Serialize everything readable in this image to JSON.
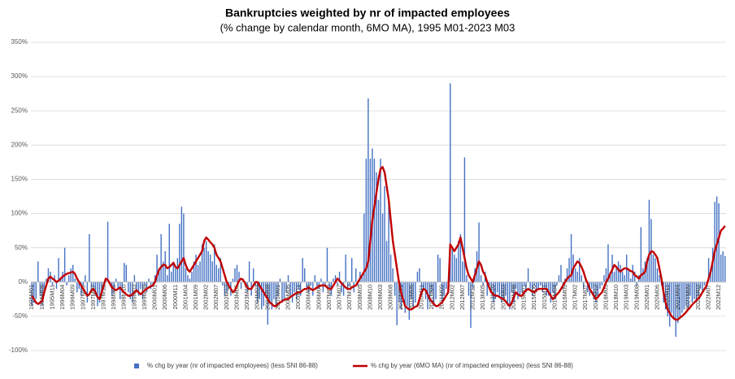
{
  "chart_data": {
    "type": "bar",
    "title": "Bankruptcies weighted by nr of impacted employees",
    "subtitle": "(% change by calendar month, 6MO MA), 1995 M01-2023 M03",
    "ylim": [
      -100,
      350
    ],
    "yticks": [
      {
        "value": -100,
        "label": "-100%"
      },
      {
        "value": -50,
        "label": "-50%"
      },
      {
        "value": 0,
        "label": "0%"
      },
      {
        "value": 50,
        "label": "50%"
      },
      {
        "value": 100,
        "label": "100%"
      },
      {
        "value": 150,
        "label": "150%"
      },
      {
        "value": 200,
        "label": "200%"
      },
      {
        "value": 250,
        "label": "250%"
      },
      {
        "value": 300,
        "label": "300%"
      },
      {
        "value": 350,
        "label": "350%"
      }
    ],
    "grid": true,
    "legend": "bottom",
    "categories": [
      "1995M01",
      null,
      null,
      null,
      null,
      "1995M06",
      null,
      null,
      null,
      null,
      "1995M11",
      null,
      null,
      null,
      null,
      "1996M04",
      null,
      null,
      null,
      null,
      "1996M09",
      null,
      null,
      null,
      null,
      "1997M02",
      null,
      null,
      null,
      null,
      "1997M07",
      null,
      null,
      null,
      null,
      "1997M12",
      null,
      null,
      null,
      null,
      "1998M05",
      null,
      null,
      null,
      null,
      "1998M10",
      null,
      null,
      null,
      null,
      "1999M03",
      null,
      null,
      null,
      null,
      "1999M08",
      null,
      null,
      null,
      null,
      "2000M01",
      null,
      null,
      null,
      null,
      "2000M06",
      null,
      null,
      null,
      null,
      "2000M11",
      null,
      null,
      null,
      null,
      "2001M04",
      null,
      null,
      null,
      null,
      "2001M09",
      null,
      null,
      null,
      null,
      "2002M02",
      null,
      null,
      null,
      null,
      "2002M07",
      null,
      null,
      null,
      null,
      "2002M12",
      null,
      null,
      null,
      null,
      "2003M05",
      null,
      null,
      null,
      null,
      "2003M10",
      null,
      null,
      null,
      null,
      "2004M03",
      null,
      null,
      null,
      null,
      "2004M08",
      null,
      null,
      null,
      null,
      "2005M01",
      null,
      null,
      null,
      null,
      "2005M06",
      null,
      null,
      null,
      null,
      "2005M11",
      null,
      null,
      null,
      null,
      "2006M04",
      null,
      null,
      null,
      null,
      "2006M09",
      null,
      null,
      null,
      null,
      "2007M02",
      null,
      null,
      null,
      null,
      "2007M07",
      null,
      null,
      null,
      null,
      "2007M12",
      null,
      null,
      null,
      null,
      "2008M05",
      null,
      null,
      null,
      null,
      "2008M10",
      null,
      null,
      null,
      null,
      "2009M03",
      null,
      null,
      null,
      null,
      "2009M08",
      null,
      null,
      null,
      null,
      "2010M01",
      null,
      null,
      null,
      null,
      "2010M06",
      null,
      null,
      null,
      null,
      "2010M11",
      null,
      null,
      null,
      null,
      "2011M04",
      null,
      null,
      null,
      null,
      "2011M09",
      null,
      null,
      null,
      null,
      "2012M02",
      null,
      null,
      null,
      null,
      "2012M07",
      null,
      null,
      null,
      null,
      "2012M12",
      null,
      null,
      null,
      null,
      "2013M05",
      null,
      null,
      null,
      null,
      "2013M10",
      null,
      null,
      null,
      null,
      "2014M03",
      null,
      null,
      null,
      null,
      "2014M08",
      null,
      null,
      null,
      null,
      "2015M01",
      null,
      null,
      null,
      null,
      "2015M06",
      null,
      null,
      null,
      null,
      "2015M11",
      null,
      null,
      null,
      null,
      "2016M04",
      null,
      null,
      null,
      null,
      "2016M09",
      null,
      null,
      null,
      null,
      "2017M02",
      null,
      null,
      null,
      null,
      "2017M07",
      null,
      null,
      null,
      null,
      "2017M12",
      null,
      null,
      null,
      null,
      "2018M05",
      null,
      null,
      null,
      null,
      "2018M10",
      null,
      null,
      null,
      null,
      "2019M03",
      null,
      null,
      null,
      null,
      "2019M08",
      null,
      null,
      null,
      null,
      "2020M01",
      null,
      null,
      null,
      null,
      "2020M06",
      null,
      null,
      null,
      null,
      "2020M11",
      null,
      null,
      null,
      null,
      "2021M04",
      null,
      null,
      null,
      null,
      "2021M09",
      null,
      null,
      null,
      null,
      "2022M02",
      null,
      null,
      null,
      null,
      "2022M07",
      null,
      null,
      null,
      null,
      "2022M12",
      null,
      null,
      null
    ],
    "series": [
      {
        "name": "% chg by year  (nr of impacted employees) (less SNI 86-88)",
        "type": "bar",
        "color": "#4472c4",
        "values": [
          -35,
          -30,
          -25,
          30,
          -20,
          -35,
          -10,
          5,
          20,
          15,
          -5,
          10,
          -10,
          35,
          5,
          15,
          50,
          -5,
          10,
          20,
          25,
          5,
          -15,
          -10,
          -20,
          -5,
          10,
          -30,
          70,
          -15,
          -10,
          -20,
          -35,
          -30,
          -15,
          -10,
          5,
          88,
          -5,
          -20,
          -15,
          5,
          -10,
          -25,
          -10,
          28,
          25,
          -15,
          -25,
          -30,
          10,
          -15,
          -20,
          -10,
          -25,
          -5,
          -15,
          5,
          -10,
          -5,
          10,
          40,
          20,
          70,
          30,
          45,
          10,
          85,
          15,
          30,
          20,
          35,
          85,
          110,
          100,
          20,
          10,
          5,
          15,
          30,
          40,
          25,
          30,
          55,
          50,
          60,
          45,
          40,
          30,
          55,
          25,
          20,
          35,
          -5,
          -20,
          -15,
          -10,
          -20,
          5,
          20,
          25,
          15,
          -10,
          5,
          -5,
          -15,
          30,
          -20,
          20,
          -5,
          -30,
          -25,
          -40,
          -35,
          -20,
          -62,
          -30,
          -40,
          -25,
          -35,
          -20,
          5,
          -30,
          -25,
          -15,
          10,
          -20,
          -30,
          -15,
          -25,
          -10,
          -20,
          35,
          20,
          -10,
          -15,
          -5,
          -20,
          10,
          -5,
          -10,
          5,
          -15,
          -5,
          50,
          -10,
          -20,
          5,
          10,
          -5,
          15,
          -15,
          -20,
          40,
          -10,
          -5,
          35,
          -15,
          20,
          -5,
          15,
          10,
          100,
          180,
          268,
          180,
          195,
          180,
          160,
          120,
          180,
          100,
          140,
          60,
          120,
          40,
          20,
          -20,
          -63,
          -30,
          -40,
          -30,
          -45,
          -35,
          -55,
          -25,
          -40,
          -30,
          15,
          20,
          -20,
          -10,
          -25,
          -40,
          -30,
          -15,
          -35,
          -25,
          40,
          35,
          -30,
          -20,
          -10,
          -5,
          290,
          50,
          40,
          35,
          60,
          70,
          30,
          182,
          10,
          -20,
          -67,
          -10,
          20,
          45,
          87,
          10,
          -5,
          15,
          -20,
          -5,
          -15,
          -30,
          -25,
          -15,
          -20,
          -30,
          -25,
          -20,
          -35,
          -40,
          -15,
          -30,
          -10,
          -25,
          -20,
          -15,
          -5,
          -15,
          20,
          -10,
          -20,
          -5,
          -15,
          -10,
          -5,
          -15,
          -10,
          -20,
          -20,
          -30,
          -15,
          -25,
          -5,
          10,
          25,
          -10,
          5,
          20,
          35,
          70,
          40,
          20,
          15,
          35,
          10,
          -10,
          5,
          -15,
          -20,
          -10,
          -25,
          -30,
          -20,
          -10,
          -5,
          10,
          20,
          55,
          10,
          40,
          15,
          20,
          30,
          25,
          15,
          10,
          40,
          20,
          5,
          25,
          15,
          -5,
          10,
          80,
          20,
          30,
          35,
          120,
          92,
          40,
          35,
          20,
          10,
          -5,
          -30,
          -40,
          -50,
          -65,
          -45,
          -55,
          -80,
          -60,
          -50,
          -45,
          -40,
          -35,
          -40,
          -20,
          -30,
          -25,
          -30,
          -20,
          -10,
          -15,
          -5,
          -10,
          35,
          20,
          50,
          117,
          125,
          115,
          40,
          45,
          38
        ]
      },
      {
        "name": "% chg by year (6MO MA) (nr of impacted employees) (less SNI 86-88)",
        "type": "line",
        "color": "#c00000",
        "values": [
          -20,
          -25,
          -30,
          -32,
          -30,
          -28,
          -15,
          -5,
          5,
          8,
          5,
          3,
          0,
          2,
          5,
          8,
          10,
          12,
          13,
          14,
          15,
          12,
          5,
          0,
          -5,
          -10,
          -15,
          -20,
          -18,
          -12,
          -10,
          -15,
          -22,
          -25,
          -15,
          -5,
          5,
          3,
          -2,
          -8,
          -10,
          -12,
          -10,
          -8,
          -12,
          -15,
          -18,
          -20,
          -20,
          -18,
          -15,
          -12,
          -15,
          -18,
          -15,
          -12,
          -10,
          -8,
          -6,
          -5,
          0,
          10,
          18,
          22,
          25,
          25,
          20,
          22,
          25,
          28,
          22,
          20,
          25,
          30,
          35,
          25,
          18,
          15,
          20,
          25,
          30,
          35,
          40,
          45,
          60,
          65,
          62,
          58,
          55,
          50,
          40,
          35,
          30,
          20,
          10,
          0,
          -5,
          -10,
          -15,
          -12,
          -5,
          2,
          5,
          3,
          -2,
          -8,
          -10,
          -10,
          -5,
          0,
          0,
          -5,
          -10,
          -15,
          -20,
          -25,
          -30,
          -32,
          -35,
          -35,
          -32,
          -30,
          -28,
          -26,
          -25,
          -25,
          -22,
          -20,
          -18,
          -16,
          -15,
          -15,
          -12,
          -10,
          -10,
          -8,
          -10,
          -12,
          -10,
          -8,
          -6,
          -5,
          -5,
          -5,
          -8,
          -10,
          -10,
          -5,
          0,
          5,
          2,
          -2,
          -5,
          -8,
          -10,
          -10,
          -8,
          -6,
          -5,
          0,
          5,
          10,
          15,
          20,
          30,
          60,
          90,
          110,
          130,
          150,
          165,
          168,
          160,
          140,
          120,
          90,
          60,
          40,
          20,
          0,
          -15,
          -25,
          -35,
          -38,
          -40,
          -40,
          -38,
          -36,
          -35,
          -25,
          -15,
          -10,
          -12,
          -18,
          -25,
          -28,
          -32,
          -35,
          -35,
          -32,
          -30,
          -25,
          -20,
          -15,
          55,
          50,
          45,
          50,
          55,
          65,
          50,
          35,
          20,
          10,
          5,
          0,
          10,
          20,
          30,
          25,
          15,
          10,
          0,
          -8,
          -15,
          -18,
          -20,
          -20,
          -22,
          -24,
          -25,
          -28,
          -32,
          -35,
          -30,
          -22,
          -15,
          -18,
          -20,
          -20,
          -15,
          -12,
          -10,
          -12,
          -14,
          -15,
          -12,
          -10,
          -10,
          -10,
          -10,
          -10,
          -15,
          -20,
          -25,
          -22,
          -18,
          -15,
          -10,
          -5,
          0,
          5,
          8,
          10,
          20,
          25,
          30,
          28,
          22,
          15,
          5,
          -2,
          -10,
          -15,
          -20,
          -25,
          -22,
          -18,
          -15,
          -8,
          0,
          5,
          12,
          18,
          25,
          22,
          18,
          15,
          18,
          20,
          20,
          18,
          16,
          15,
          10,
          8,
          5,
          10,
          12,
          15,
          30,
          40,
          45,
          44,
          40,
          35,
          20,
          5,
          -15,
          -30,
          -40,
          -45,
          -50,
          -53,
          -55,
          -55,
          -52,
          -50,
          -47,
          -44,
          -40,
          -37,
          -33,
          -30,
          -27,
          -24,
          -20,
          -15,
          -10,
          -5,
          5,
          15,
          30,
          45,
          55,
          65,
          75,
          78,
          82
        ]
      }
    ]
  }
}
